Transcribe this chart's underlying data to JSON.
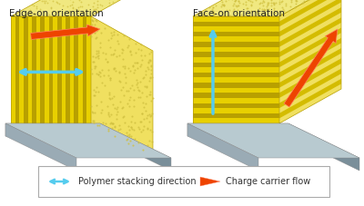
{
  "title_left": "Edge-on orientation",
  "title_right": "Face-on orientation",
  "legend_label1": "Polymer stacking direction",
  "legend_label2": "Charge carrier flow",
  "bg_color": "#ffffff",
  "yellow_main": "#e8d000",
  "yellow_dark": "#b8a000",
  "yellow_mid": "#d4bc00",
  "yellow_light": "#f0e060",
  "yellow_top": "#f0e880",
  "yellow_grainy": "#d0c040",
  "gray_base_front": "#9aabb5",
  "gray_base_side": "#7a8f9a",
  "gray_base_top": "#b8cad0",
  "cyan_color": "#55ccee",
  "red_dark": "#cc2200",
  "red_mid": "#ee4400",
  "red_light": "#ff8866"
}
